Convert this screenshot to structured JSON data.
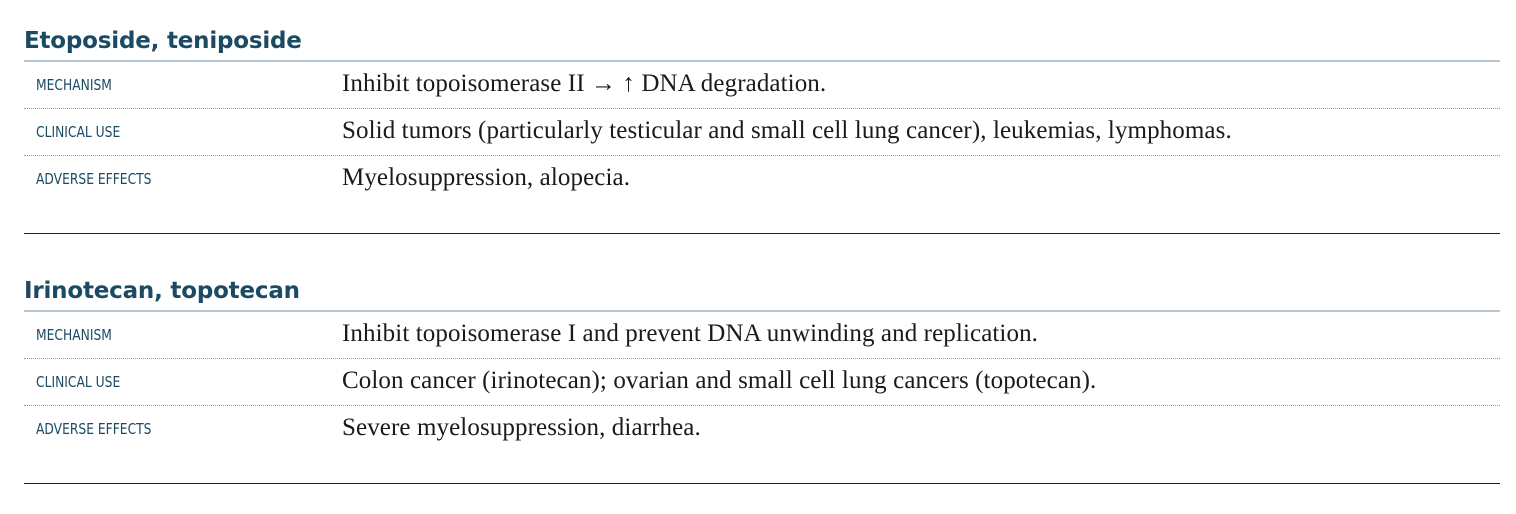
{
  "sections": [
    {
      "title": "Etoposide, teniposide",
      "rows": [
        {
          "label": "MECHANISM",
          "value": "Inhibit topoisomerase II → ↑ DNA degradation."
        },
        {
          "label": "CLINICAL USE",
          "value": "Solid tumors (particularly testicular and small cell lung cancer), leukemias, lymphomas."
        },
        {
          "label": "ADVERSE EFFECTS",
          "value": "Myelosuppression, alopecia."
        }
      ]
    },
    {
      "title": "Irinotecan, topotecan",
      "rows": [
        {
          "label": "MECHANISM",
          "value": "Inhibit topoisomerase I and prevent DNA unwinding and replication."
        },
        {
          "label": "CLINICAL USE",
          "value": "Colon cancer (irinotecan); ovarian and small cell lung cancers (topotecan)."
        },
        {
          "label": "ADVERSE EFFECTS",
          "value": "Severe myelosuppression, diarrhea."
        }
      ]
    }
  ],
  "colors": {
    "heading": "#1b4a63",
    "title_rule": "#b6c5cf",
    "body_text": "#1a1a1a"
  }
}
